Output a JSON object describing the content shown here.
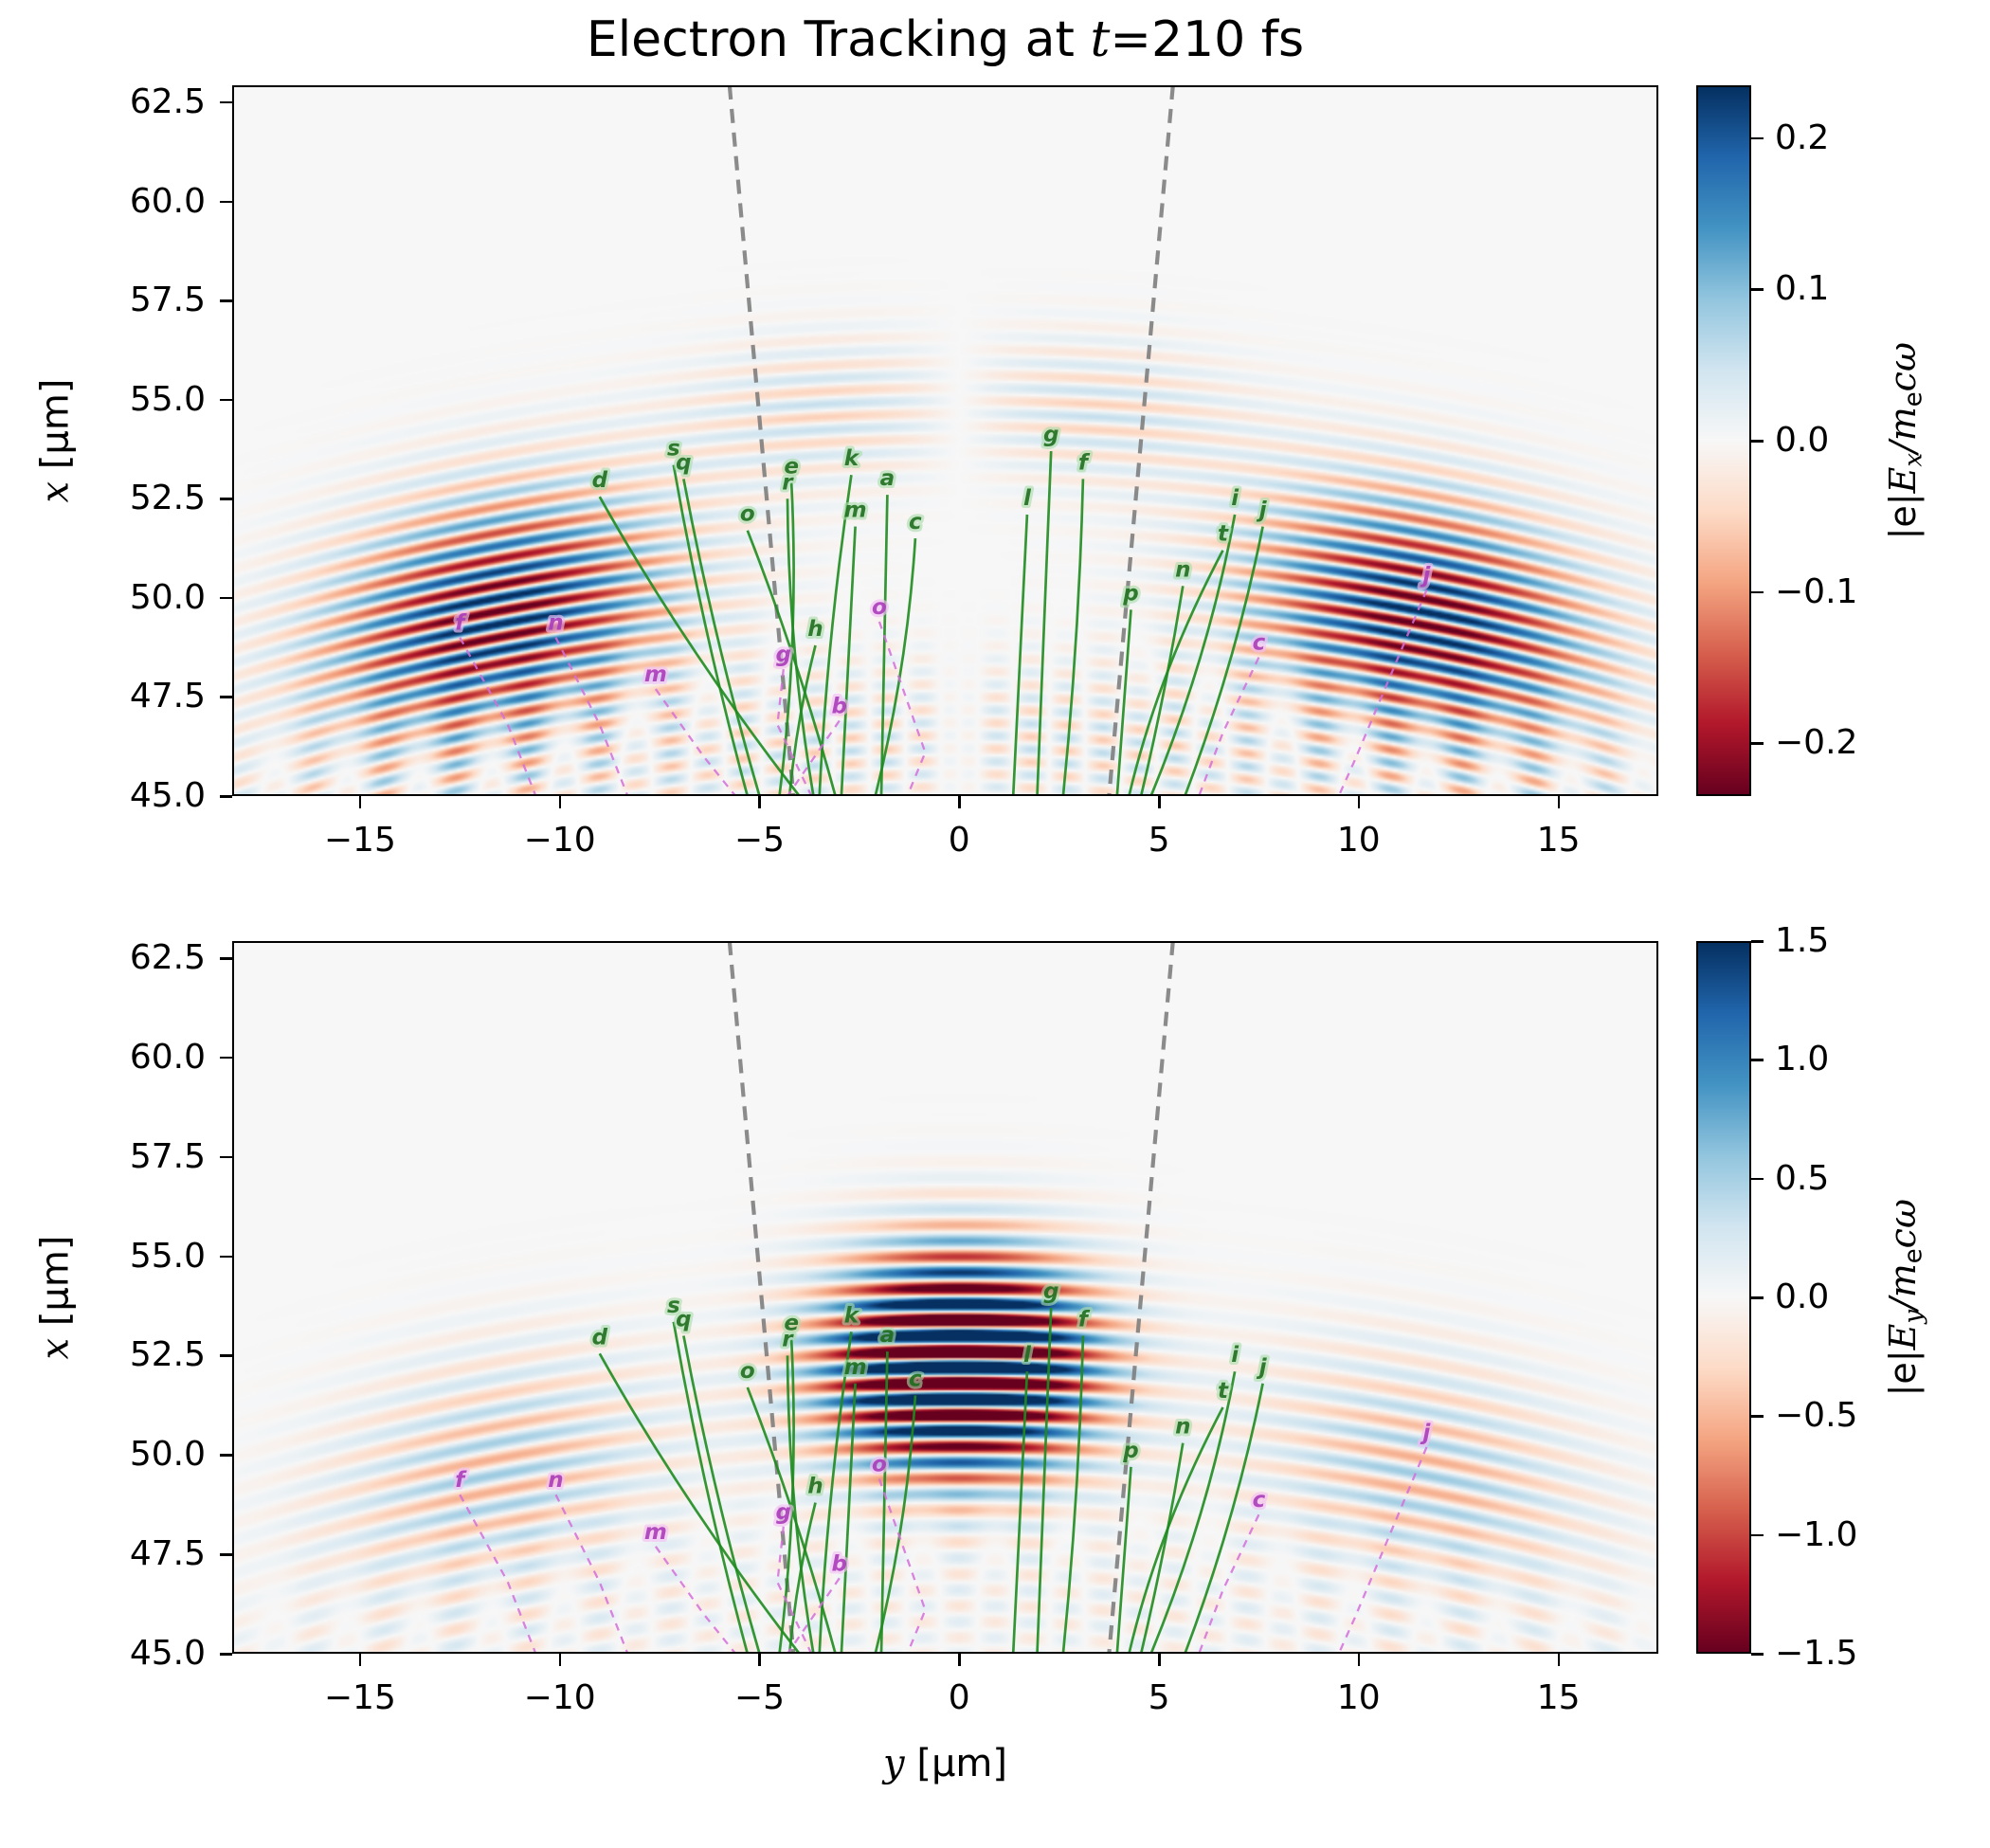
{
  "title": {
    "prefix": "Electron Tracking at ",
    "math_var": "t",
    "suffix": "=210 fs"
  },
  "axes": {
    "xlabel_parts": [
      {
        "t": "y",
        "i": 1
      },
      {
        "t": " [μm]"
      }
    ],
    "ylabel_parts": [
      {
        "t": "x",
        "i": 1
      },
      {
        "t": " [μm]"
      }
    ],
    "xlim": [
      -18.2,
      17.5
    ],
    "ylim": [
      45.0,
      62.93
    ],
    "xticks": [
      {
        "v": -15,
        "label": "−15"
      },
      {
        "v": -10,
        "label": "−10"
      },
      {
        "v": -5,
        "label": "−5"
      },
      {
        "v": 0,
        "label": "0"
      },
      {
        "v": 5,
        "label": "5"
      },
      {
        "v": 10,
        "label": "10"
      },
      {
        "v": 15,
        "label": "15"
      }
    ],
    "yticks": [
      {
        "v": 62.5,
        "label": "62.5"
      },
      {
        "v": 60.0,
        "label": "60.0"
      },
      {
        "v": 57.5,
        "label": "57.5"
      },
      {
        "v": 55.0,
        "label": "55.0"
      },
      {
        "v": 52.5,
        "label": "52.5"
      },
      {
        "v": 50.0,
        "label": "50.0"
      },
      {
        "v": 47.5,
        "label": "47.5"
      },
      {
        "v": 45.0,
        "label": "45.0"
      }
    ]
  },
  "colors": {
    "green_line": "#1f8b1f",
    "green_label": "#1b6b1b",
    "green_halo": "#a8dca8",
    "magenta_line": "#d46fd9",
    "magenta_label": "#a93cb8",
    "magenta_halo": "#f2c0f4",
    "cone_line": "#7f7f7f",
    "frame": "#000000",
    "background": "#f7f7f7"
  },
  "chart_data": {
    "type": "heatmap",
    "colormap_rdbu_stops": [
      [
        0.0,
        "#67001f"
      ],
      [
        0.1,
        "#b2182b"
      ],
      [
        0.2,
        "#d6604d"
      ],
      [
        0.3,
        "#f4a582"
      ],
      [
        0.4,
        "#fddbc7"
      ],
      [
        0.5,
        "#f7f7f7"
      ],
      [
        0.6,
        "#d1e5f0"
      ],
      [
        0.7,
        "#92c5de"
      ],
      [
        0.8,
        "#4393c3"
      ],
      [
        0.9,
        "#2166ac"
      ],
      [
        1.0,
        "#053061"
      ]
    ],
    "wave_source": {
      "center_y": 0.0,
      "center_x": -11.0,
      "sign_smooth_width": 0.8
    },
    "panels": [
      {
        "name": "Ex",
        "lambda_um": 0.65,
        "vmax": 0.235,
        "colorbar": {
          "label_parts": [
            {
              "t": "|e|"
            },
            {
              "t": "E",
              "i": 1
            },
            {
              "t": "x",
              "i": 1,
              "sub": 1
            },
            {
              "t": "/",
              "i": 1
            },
            {
              "t": "m",
              "i": 1
            },
            {
              "t": "e",
              "sub": 1
            },
            {
              "t": "c",
              "i": 1
            },
            {
              "t": "ω",
              "i": 1
            }
          ],
          "ticks": [
            {
              "v": 0.2,
              "label": "0.2"
            },
            {
              "v": 0.1,
              "label": "0.1"
            },
            {
              "v": 0.0,
              "label": "0.0"
            },
            {
              "v": -0.1,
              "label": "−0.1"
            },
            {
              "v": -0.2,
              "label": "−0.2"
            }
          ]
        },
        "terms": [
          {
            "type": "lobes",
            "ycen": 11.6,
            "ysig": 4.2,
            "rcen": 61.6,
            "rsig": 2.9,
            "amp": 0.26,
            "odd": true
          },
          {
            "type": "lobes",
            "ycen": 3.5,
            "ysig": 3.5,
            "rcen": 65.8,
            "rsig": 1.8,
            "amp": 0.055,
            "odd": true
          },
          {
            "type": "cross",
            "rcen": 57.3,
            "rsig": 2.2,
            "yper": 1.8,
            "amp": 0.06,
            "odd": true
          }
        ]
      },
      {
        "name": "Ey",
        "lambda_um": 0.8,
        "vmax": 1.5,
        "colorbar": {
          "label_parts": [
            {
              "t": "|e|"
            },
            {
              "t": "E",
              "i": 1
            },
            {
              "t": "y",
              "i": 1,
              "sub": 1
            },
            {
              "t": "/",
              "i": 1
            },
            {
              "t": "m",
              "i": 1
            },
            {
              "t": "e",
              "sub": 1
            },
            {
              "t": "c",
              "i": 1
            },
            {
              "t": "ω",
              "i": 1
            }
          ],
          "ticks": [
            {
              "v": 1.5,
              "label": "1.5"
            },
            {
              "v": 1.0,
              "label": "1.0"
            },
            {
              "v": 0.5,
              "label": "0.5"
            },
            {
              "v": 0.0,
              "label": "0.0"
            },
            {
              "v": -0.5,
              "label": "−0.5"
            },
            {
              "v": -1.0,
              "label": "−1.0"
            },
            {
              "v": -1.5,
              "label": "−1.5"
            }
          ]
        },
        "terms": [
          {
            "type": "lobes",
            "ycen": 0.0,
            "ysig": 3.1,
            "rcen": 63.3,
            "rsig": 2.6,
            "amp": 3.2,
            "odd": false
          },
          {
            "type": "lobes",
            "ycen": 11.6,
            "ysig": 4.2,
            "rcen": 61.6,
            "rsig": 2.9,
            "amp": 0.55,
            "odd": false
          },
          {
            "type": "cross",
            "rcen": 57.3,
            "rsig": 2.2,
            "yper": 1.8,
            "amp": 0.18,
            "odd": false
          }
        ]
      }
    ],
    "cone_lines": {
      "left": {
        "y_at_bottom": -4.15,
        "y_at_top": -5.75
      },
      "right": {
        "y_at_bottom": 3.75,
        "y_at_top": 5.35
      }
    },
    "trajectories": {
      "green_solid": [
        {
          "label": "d",
          "tip": [
            -9.0,
            52.55
          ],
          "bot": [
            -4.0,
            45
          ],
          "bend": -0.4
        },
        {
          "label": "s",
          "tip": [
            -7.15,
            53.35
          ],
          "bot": [
            -5.3,
            45
          ],
          "bend": -0.2
        },
        {
          "label": "q",
          "tip": [
            -6.9,
            53.0
          ],
          "bot": [
            -5.0,
            45
          ],
          "bend": -0.2
        },
        {
          "label": "o",
          "tip": [
            -5.3,
            51.7
          ],
          "bot": [
            -3.1,
            45
          ],
          "bend": 0.2
        },
        {
          "label": "e",
          "tip": [
            -4.2,
            52.9
          ],
          "bot": [
            -4.5,
            45
          ],
          "bend": 0.35
        },
        {
          "label": "r",
          "tip": [
            -4.3,
            52.5
          ],
          "bot": [
            -3.65,
            45
          ],
          "bend": -0.3
        },
        {
          "label": "k",
          "tip": [
            -2.7,
            53.1
          ],
          "bot": [
            -3.5,
            45
          ],
          "bend": -0.2
        },
        {
          "label": "a",
          "tip": [
            -1.8,
            52.6
          ],
          "bot": [
            -1.95,
            45
          ],
          "bend": 0
        },
        {
          "label": "m",
          "tip": [
            -2.6,
            51.8
          ],
          "bot": [
            -2.95,
            45
          ],
          "bend": 0
        },
        {
          "label": "c",
          "tip": [
            -1.1,
            51.5
          ],
          "bot": [
            -2.1,
            45
          ],
          "bend": 0.3
        },
        {
          "label": "h",
          "tip": [
            -3.6,
            48.8
          ],
          "bot": [
            -4.25,
            45
          ],
          "bend": -0.15
        },
        {
          "label": "g",
          "tip": [
            2.3,
            53.7
          ],
          "bot": [
            1.95,
            45
          ],
          "bend": 0
        },
        {
          "label": "f",
          "tip": [
            3.1,
            53.0
          ],
          "bot": [
            2.6,
            45
          ],
          "bend": 0.15
        },
        {
          "label": "l",
          "tip": [
            1.7,
            52.1
          ],
          "bot": [
            1.35,
            45
          ],
          "bend": 0
        },
        {
          "label": "i",
          "tip": [
            6.9,
            52.1
          ],
          "bot": [
            4.8,
            45
          ],
          "bend": 0.4
        },
        {
          "label": "j",
          "tip": [
            7.6,
            51.8
          ],
          "bot": [
            5.65,
            45
          ],
          "bend": 0.3
        },
        {
          "label": "t",
          "tip": [
            6.6,
            51.2
          ],
          "bot": [
            4.25,
            45
          ],
          "bend": -0.45
        },
        {
          "label": "n",
          "tip": [
            5.6,
            50.3
          ],
          "bot": [
            4.55,
            45
          ],
          "bend": 0.1
        },
        {
          "label": "p",
          "tip": [
            4.3,
            49.7
          ],
          "bot": [
            3.95,
            45
          ],
          "bend": 0
        }
      ],
      "magenta_dashed": [
        {
          "label": "f",
          "pts": [
            [
              -12.5,
              49.0
            ],
            [
              -11.3,
              46.8
            ],
            [
              -10.6,
              45
            ]
          ]
        },
        {
          "label": "n",
          "pts": [
            [
              -10.1,
              49.0
            ],
            [
              -9.0,
              46.8
            ],
            [
              -8.3,
              45
            ]
          ]
        },
        {
          "label": "m",
          "pts": [
            [
              -7.6,
              47.7
            ],
            [
              -6.4,
              46.0
            ],
            [
              -5.6,
              45
            ]
          ]
        },
        {
          "label": "g",
          "pts": [
            [
              -4.4,
              48.2
            ],
            [
              -4.55,
              46.8
            ],
            [
              -3.7,
              45
            ]
          ]
        },
        {
          "label": "b",
          "pts": [
            [
              -3.0,
              46.9
            ],
            [
              -4.3,
              45
            ]
          ]
        },
        {
          "label": "o",
          "pts": [
            [
              -2.0,
              49.4
            ],
            [
              -0.85,
              46.1
            ],
            [
              -1.3,
              45
            ]
          ]
        },
        {
          "label": "c",
          "pts": [
            [
              7.5,
              48.5
            ],
            [
              6.6,
              46.6
            ],
            [
              6.0,
              45
            ]
          ]
        },
        {
          "label": "j",
          "pts": [
            [
              11.7,
              50.2
            ],
            [
              9.9,
              45.9
            ],
            [
              9.5,
              45
            ]
          ]
        }
      ]
    }
  }
}
